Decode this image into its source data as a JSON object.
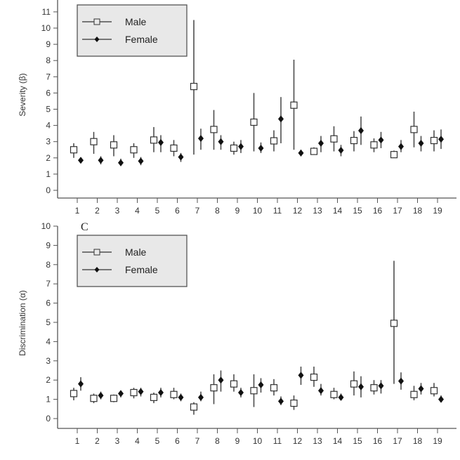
{
  "chart_data": [
    {
      "type": "scatter",
      "subtype": "point-with-error-bars",
      "panel_label": "",
      "ylabel": "Severity (β)",
      "xlabel": "",
      "ylim": [
        0,
        12
      ],
      "yticks": [
        0,
        1,
        2,
        3,
        4,
        5,
        6,
        7,
        8,
        9,
        10,
        11
      ],
      "categories": [
        "1",
        "2",
        "3",
        "4",
        "5",
        "6",
        "7",
        "8",
        "9",
        "10",
        "11",
        "12",
        "13",
        "14",
        "15",
        "16",
        "17",
        "18",
        "19"
      ],
      "legend": {
        "placement": "top-left",
        "entries": [
          "Male",
          "Female"
        ]
      },
      "grid": false,
      "series": [
        {
          "name": "Male",
          "marker": "open-square",
          "values": [
            2.5,
            3.0,
            2.8,
            2.5,
            3.1,
            2.6,
            6.4,
            3.75,
            2.6,
            4.2,
            3.05,
            5.25,
            2.4,
            3.17,
            3.07,
            2.8,
            2.2,
            3.75,
            3.07
          ],
          "lower": [
            2.0,
            2.25,
            2.1,
            2.0,
            2.35,
            2.1,
            2.2,
            2.5,
            2.2,
            2.4,
            2.4,
            2.5,
            2.2,
            2.4,
            2.4,
            2.35,
            2.05,
            2.65,
            2.4
          ],
          "upper": [
            2.9,
            3.6,
            3.4,
            2.9,
            3.9,
            3.1,
            10.5,
            4.95,
            3.0,
            6.0,
            3.7,
            8.05,
            2.65,
            3.95,
            3.65,
            3.2,
            2.45,
            4.85,
            3.7
          ]
        },
        {
          "name": "Female",
          "marker": "filled-diamond",
          "values": [
            1.85,
            1.85,
            1.7,
            1.8,
            2.95,
            2.05,
            3.2,
            3.0,
            2.7,
            2.6,
            4.4,
            2.3,
            2.9,
            2.47,
            3.68,
            3.1,
            2.7,
            2.9,
            3.15
          ],
          "lower": [
            1.7,
            1.6,
            1.5,
            1.55,
            2.35,
            1.75,
            2.5,
            2.5,
            2.3,
            2.3,
            2.9,
            2.1,
            2.35,
            2.1,
            2.8,
            2.6,
            2.35,
            2.4,
            2.55
          ],
          "upper": [
            2.0,
            2.1,
            1.95,
            2.05,
            3.4,
            2.3,
            3.8,
            3.4,
            3.1,
            2.95,
            5.75,
            2.5,
            3.35,
            2.8,
            4.55,
            3.6,
            3.1,
            3.35,
            3.75
          ]
        }
      ]
    },
    {
      "type": "scatter",
      "subtype": "point-with-error-bars",
      "panel_label": "C",
      "ylabel": "Discrimination (α)",
      "xlabel": "",
      "ylim": [
        0,
        10
      ],
      "yticks": [
        0,
        1,
        2,
        3,
        4,
        5,
        6,
        7,
        8,
        9,
        10
      ],
      "categories": [
        "1",
        "2",
        "3",
        "4",
        "5",
        "6",
        "7",
        "8",
        "9",
        "10",
        "11",
        "12",
        "13",
        "14",
        "15",
        "16",
        "17",
        "18",
        "19"
      ],
      "legend": {
        "placement": "top-left",
        "entries": [
          "Male",
          "Female"
        ]
      },
      "grid": false,
      "series": [
        {
          "name": "Male",
          "marker": "open-square",
          "values": [
            1.3,
            1.05,
            1.05,
            1.35,
            1.1,
            1.25,
            0.6,
            1.6,
            1.8,
            1.45,
            1.6,
            0.8,
            2.15,
            1.25,
            1.8,
            1.6,
            4.95,
            1.25,
            1.45
          ],
          "lower": [
            0.95,
            0.8,
            0.85,
            1.05,
            0.8,
            1.0,
            0.2,
            0.75,
            1.4,
            0.6,
            1.2,
            0.45,
            1.65,
            1.0,
            1.2,
            1.25,
            1.8,
            0.95,
            1.15
          ],
          "upper": [
            1.6,
            1.3,
            1.25,
            1.6,
            1.35,
            1.6,
            0.85,
            2.3,
            2.3,
            2.3,
            2.05,
            1.2,
            2.7,
            1.6,
            2.45,
            2.0,
            8.2,
            1.7,
            1.85
          ]
        },
        {
          "name": "Female",
          "marker": "filled-diamond",
          "values": [
            1.8,
            1.2,
            1.3,
            1.4,
            1.35,
            1.1,
            1.1,
            2.0,
            1.35,
            1.75,
            0.9,
            2.25,
            1.45,
            1.1,
            1.65,
            1.7,
            1.95,
            1.55,
            1.0
          ],
          "lower": [
            1.45,
            1.0,
            1.1,
            1.15,
            1.1,
            0.9,
            0.9,
            1.4,
            1.1,
            1.35,
            0.7,
            1.75,
            1.2,
            0.95,
            1.1,
            1.3,
            1.5,
            1.25,
            0.85
          ],
          "upper": [
            2.15,
            1.4,
            1.45,
            1.6,
            1.6,
            1.3,
            1.4,
            2.5,
            1.6,
            2.1,
            1.15,
            2.7,
            1.8,
            1.3,
            2.2,
            2.0,
            2.4,
            1.85,
            1.2
          ]
        }
      ]
    }
  ]
}
